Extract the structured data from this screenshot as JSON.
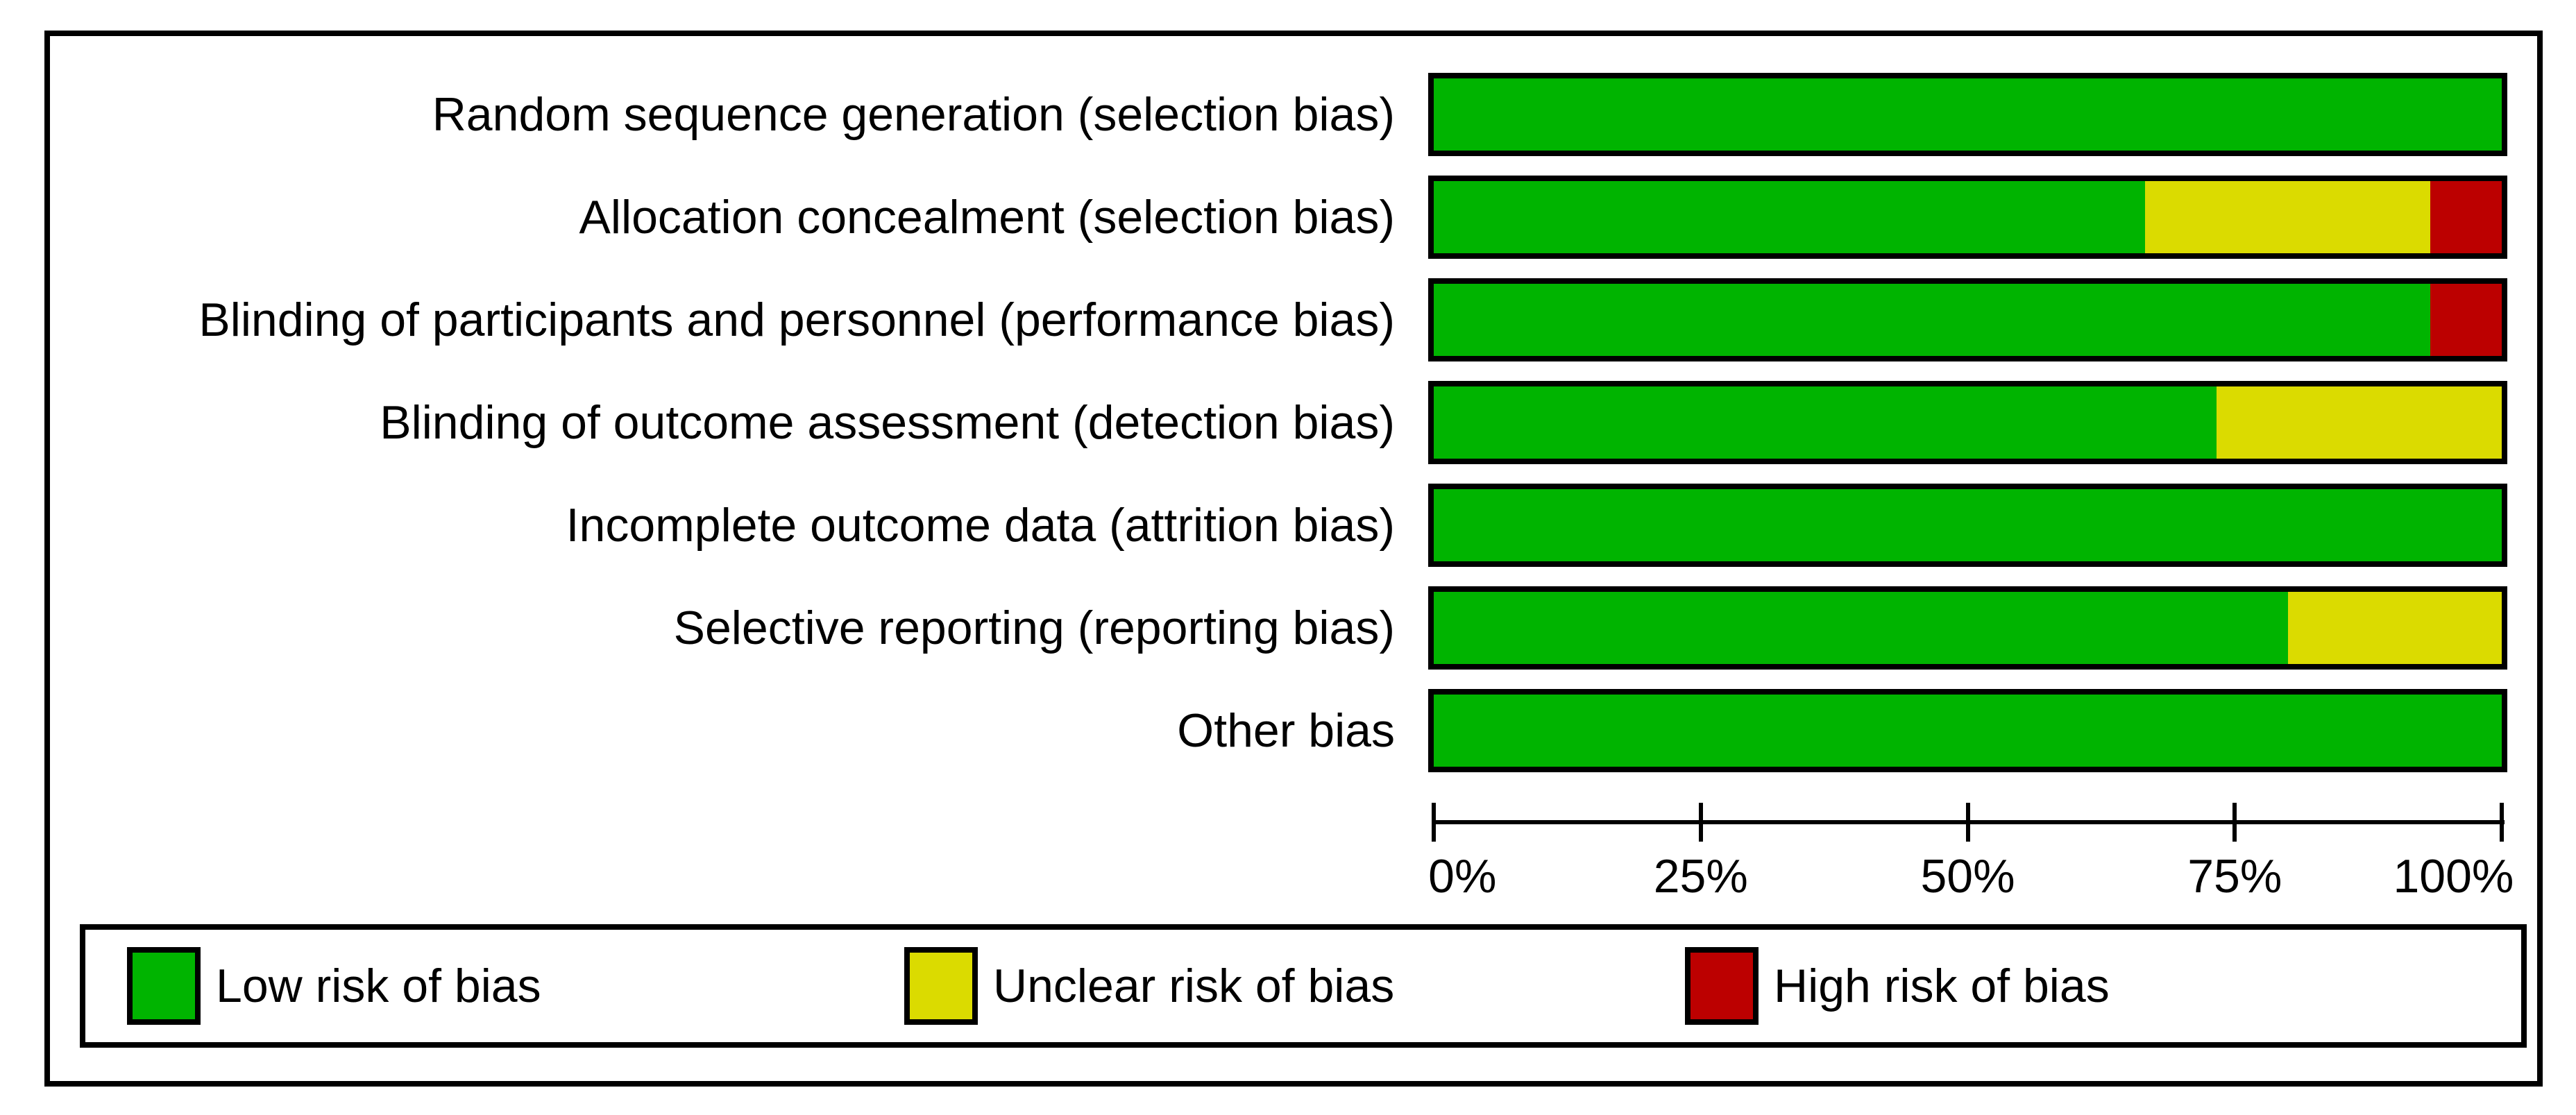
{
  "chart_data": {
    "type": "bar",
    "subtype": "horizontal-stacked-percentage",
    "title": "",
    "categories": [
      "Random sequence generation (selection bias)",
      "Allocation concealment (selection bias)",
      "Blinding of participants and personnel (performance bias)",
      "Blinding of outcome assessment (detection bias)",
      "Incomplete outcome data (attrition bias)",
      "Selective reporting (reporting bias)",
      "Other bias"
    ],
    "series": [
      {
        "key": "low",
        "name": "Low risk of bias",
        "color": "#00B400",
        "values": [
          100,
          66.7,
          93.3,
          73.3,
          100,
          80,
          100
        ]
      },
      {
        "key": "unclear",
        "name": "Unclear risk of bias",
        "color": "#DBDB00",
        "values": [
          0,
          26.7,
          0,
          26.7,
          0,
          20,
          0
        ]
      },
      {
        "key": "high",
        "name": "High risk of bias",
        "color": "#BC0000",
        "values": [
          0,
          6.7,
          6.7,
          0,
          0,
          0,
          0
        ]
      }
    ],
    "x_axis": {
      "range": [
        0,
        100
      ],
      "ticks": [
        {
          "label": "0%",
          "value": 0
        },
        {
          "label": "25%",
          "value": 25
        },
        {
          "label": "50%",
          "value": 50
        },
        {
          "label": "75%",
          "value": 75
        },
        {
          "label": "100%",
          "value": 100
        }
      ]
    },
    "legend": {
      "position": "bottom"
    },
    "grid": false
  },
  "colors": {
    "background": "#FFFFFF",
    "frame_border": "#000000",
    "bar_border": "#000000",
    "text": "#000000"
  }
}
